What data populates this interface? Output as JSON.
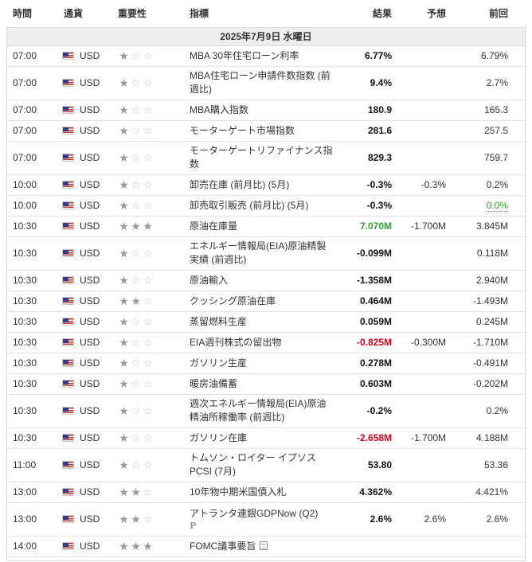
{
  "header": {
    "time": "時間",
    "currency": "通貨",
    "importance": "重要性",
    "event": "指標",
    "actual": "結果",
    "forecast": "予想",
    "previous": "前回"
  },
  "date": "2025年7月9日 水曜日",
  "colors": {
    "positive": "#2e9e2e",
    "negative": "#d0021b",
    "date_row_bg": "#eeeeee"
  },
  "icons": {
    "flag": "us-flag-icon",
    "star": "star-icon",
    "preliminary": "preliminary-icon",
    "document": "document-icon"
  },
  "rows": [
    {
      "time": "07:00",
      "currency": "USD",
      "stars": 1,
      "event": "MBA 30年住宅ローン利率",
      "actual": "6.77%",
      "forecast": "",
      "previous": "6.79%"
    },
    {
      "time": "07:00",
      "currency": "USD",
      "stars": 1,
      "event": "MBA住宅ローン申請件数指数 (前週比)",
      "actual": "9.4%",
      "forecast": "",
      "previous": "2.7%"
    },
    {
      "time": "07:00",
      "currency": "USD",
      "stars": 1,
      "event": "MBA購入指数",
      "actual": "180.9",
      "forecast": "",
      "previous": "165.3"
    },
    {
      "time": "07:00",
      "currency": "USD",
      "stars": 1,
      "event": "モーターゲート市場指数",
      "actual": "281.6",
      "forecast": "",
      "previous": "257.5"
    },
    {
      "time": "07:00",
      "currency": "USD",
      "stars": 1,
      "event": "モーターゲートリファイナンス指数",
      "actual": "829.3",
      "forecast": "",
      "previous": "759.7"
    },
    {
      "time": "10:00",
      "currency": "USD",
      "stars": 1,
      "event": "卸売在庫 (前月比) (5月)",
      "actual": "-0.3%",
      "forecast": "-0.3%",
      "previous": "0.2%"
    },
    {
      "time": "10:00",
      "currency": "USD",
      "stars": 1,
      "event": "卸売取引販売 (前月比) (5月)",
      "actual": "-0.3%",
      "forecast": "",
      "previous": "0.0%",
      "previous_color": "green"
    },
    {
      "time": "10:30",
      "currency": "USD",
      "stars": 3,
      "event": "原油在庫量",
      "actual": "7.070M",
      "actual_color": "green",
      "forecast": "-1.700M",
      "previous": "3.845M"
    },
    {
      "time": "10:30",
      "currency": "USD",
      "stars": 1,
      "event": "エネルギー情報局(EIA)原油精製実績 (前週比)",
      "actual": "-0.099M",
      "forecast": "",
      "previous": "0.118M"
    },
    {
      "time": "10:30",
      "currency": "USD",
      "stars": 1,
      "event": "原油輸入",
      "actual": "-1.358M",
      "forecast": "",
      "previous": "2.940M"
    },
    {
      "time": "10:30",
      "currency": "USD",
      "stars": 2,
      "event": "クッシング原油在庫",
      "actual": "0.464M",
      "forecast": "",
      "previous": "-1.493M"
    },
    {
      "time": "10:30",
      "currency": "USD",
      "stars": 1,
      "event": "蒸留燃料生産",
      "actual": "0.059M",
      "forecast": "",
      "previous": "0.245M"
    },
    {
      "time": "10:30",
      "currency": "USD",
      "stars": 1,
      "event": "EIA週刊株式の留出物",
      "actual": "-0.825M",
      "actual_color": "red",
      "forecast": "-0.300M",
      "previous": "-1.710M"
    },
    {
      "time": "10:30",
      "currency": "USD",
      "stars": 1,
      "event": "ガソリン生産",
      "actual": "0.278M",
      "forecast": "",
      "previous": "-0.491M"
    },
    {
      "time": "10:30",
      "currency": "USD",
      "stars": 1,
      "event": "暖房油備蓄",
      "actual": "0.603M",
      "forecast": "",
      "previous": "-0.202M"
    },
    {
      "time": "10:30",
      "currency": "USD",
      "stars": 1,
      "event": "週次エネルギー情報局(EIA)原油精油所稼働率 (前週比)",
      "actual": "-0.2%",
      "forecast": "",
      "previous": "0.2%"
    },
    {
      "time": "10:30",
      "currency": "USD",
      "stars": 1,
      "event": "ガソリン在庫",
      "actual": "-2.658M",
      "actual_color": "red",
      "forecast": "-1.700M",
      "previous": "4.188M"
    },
    {
      "time": "11:00",
      "currency": "USD",
      "stars": 1,
      "event": "トムソン・ロイター イプソス PCSI (7月)",
      "actual": "53.80",
      "forecast": "",
      "previous": "53.36"
    },
    {
      "time": "13:00",
      "currency": "USD",
      "stars": 2,
      "event": "10年物中期米国債入札",
      "actual": "4.362%",
      "forecast": "",
      "previous": "4.421%"
    },
    {
      "time": "13:00",
      "currency": "USD",
      "stars": 2,
      "event": "アトランタ連銀GDPNow (Q2)",
      "extra": "P",
      "actual": "2.6%",
      "forecast": "2.6%",
      "previous": "2.6%"
    },
    {
      "time": "14:00",
      "currency": "USD",
      "stars": 3,
      "event": "FOMC議事要旨",
      "doc_icon": true,
      "actual": "",
      "forecast": "",
      "previous": ""
    }
  ]
}
